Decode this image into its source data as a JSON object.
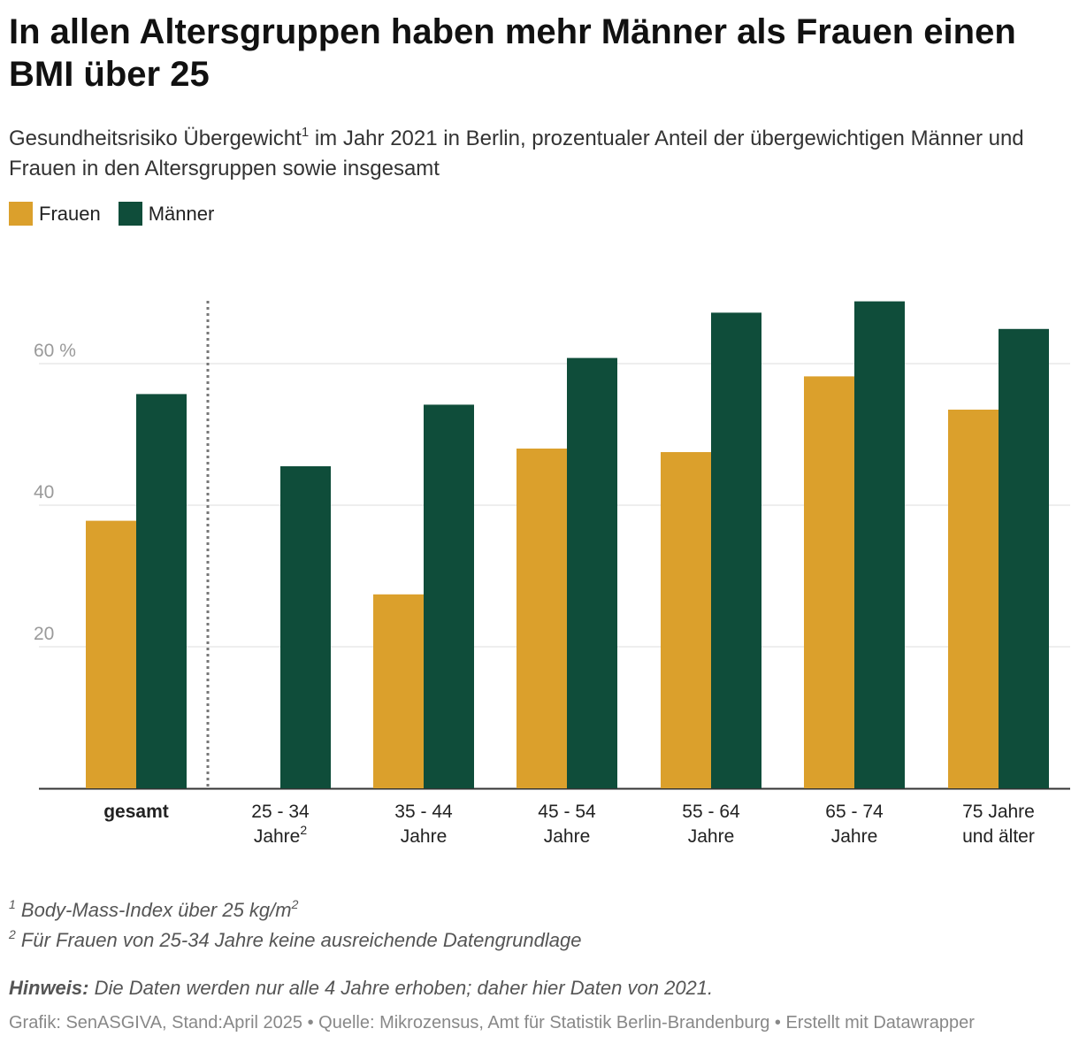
{
  "title": "In allen Altersgruppen haben mehr Männer als Frauen einen BMI über 25",
  "subtitle": {
    "before": "Gesundheitsrisiko Übergewicht",
    "sup": "1",
    "after": " im Jahr 2021 in Berlin, prozentualer Anteil der übergewichtigen Männer und Frauen in den Altersgruppen sowie insgesamt"
  },
  "legend": [
    {
      "label": "Frauen",
      "color": "#DBA02C"
    },
    {
      "label": "Männer",
      "color": "#0F4D3A"
    }
  ],
  "chart_data": {
    "type": "bar",
    "title": "In allen Altersgruppen haben mehr Männer als Frauen einen BMI über 25",
    "categories": [
      {
        "lines": [
          "gesamt"
        ],
        "sup": "",
        "bold": true
      },
      {
        "lines": [
          "25 - 34",
          "Jahre"
        ],
        "sup": "2",
        "bold": false
      },
      {
        "lines": [
          "35 - 44",
          "Jahre"
        ],
        "sup": "",
        "bold": false
      },
      {
        "lines": [
          "45 - 54",
          "Jahre"
        ],
        "sup": "",
        "bold": false
      },
      {
        "lines": [
          "55 - 64",
          "Jahre"
        ],
        "sup": "",
        "bold": false
      },
      {
        "lines": [
          "65 - 74",
          "Jahre"
        ],
        "sup": "",
        "bold": false
      },
      {
        "lines": [
          "75 Jahre",
          "und älter"
        ],
        "sup": "",
        "bold": false
      }
    ],
    "series": [
      {
        "name": "Frauen",
        "color": "#DBA02C",
        "values": [
          37.8,
          null,
          27.4,
          48.0,
          47.5,
          58.2,
          53.5
        ]
      },
      {
        "name": "Männer",
        "color": "#0F4D3A",
        "values": [
          55.7,
          45.5,
          54.2,
          60.8,
          67.2,
          68.8,
          64.9
        ]
      }
    ],
    "yticks": [
      {
        "value": 20,
        "label": "20"
      },
      {
        "value": 40,
        "label": "40"
      },
      {
        "value": 60,
        "label": "60 %"
      }
    ],
    "ylim": [
      0,
      70
    ],
    "grid": true,
    "separator_after_category": 0,
    "xlabel": "",
    "ylabel": ""
  },
  "notes": [
    {
      "sup": "1",
      "before": " Body-Mass-Index über 25 kg/m",
      "sup2": "2"
    },
    {
      "sup": "2",
      "before": " Für Frauen von 25-34 Jahre keine ausreichende Datengrundlage",
      "sup2": ""
    }
  ],
  "hint": {
    "label": "Hinweis:",
    "text": " Die Daten werden nur alle 4 Jahre erhoben; daher hier Daten von 2021."
  },
  "credits": "Grafik: SenASGIVA, Stand:April 2025 • Quelle: Mikrozensus, Amt für Statistik Berlin-Brandenburg • Erstellt mit Datawrapper"
}
